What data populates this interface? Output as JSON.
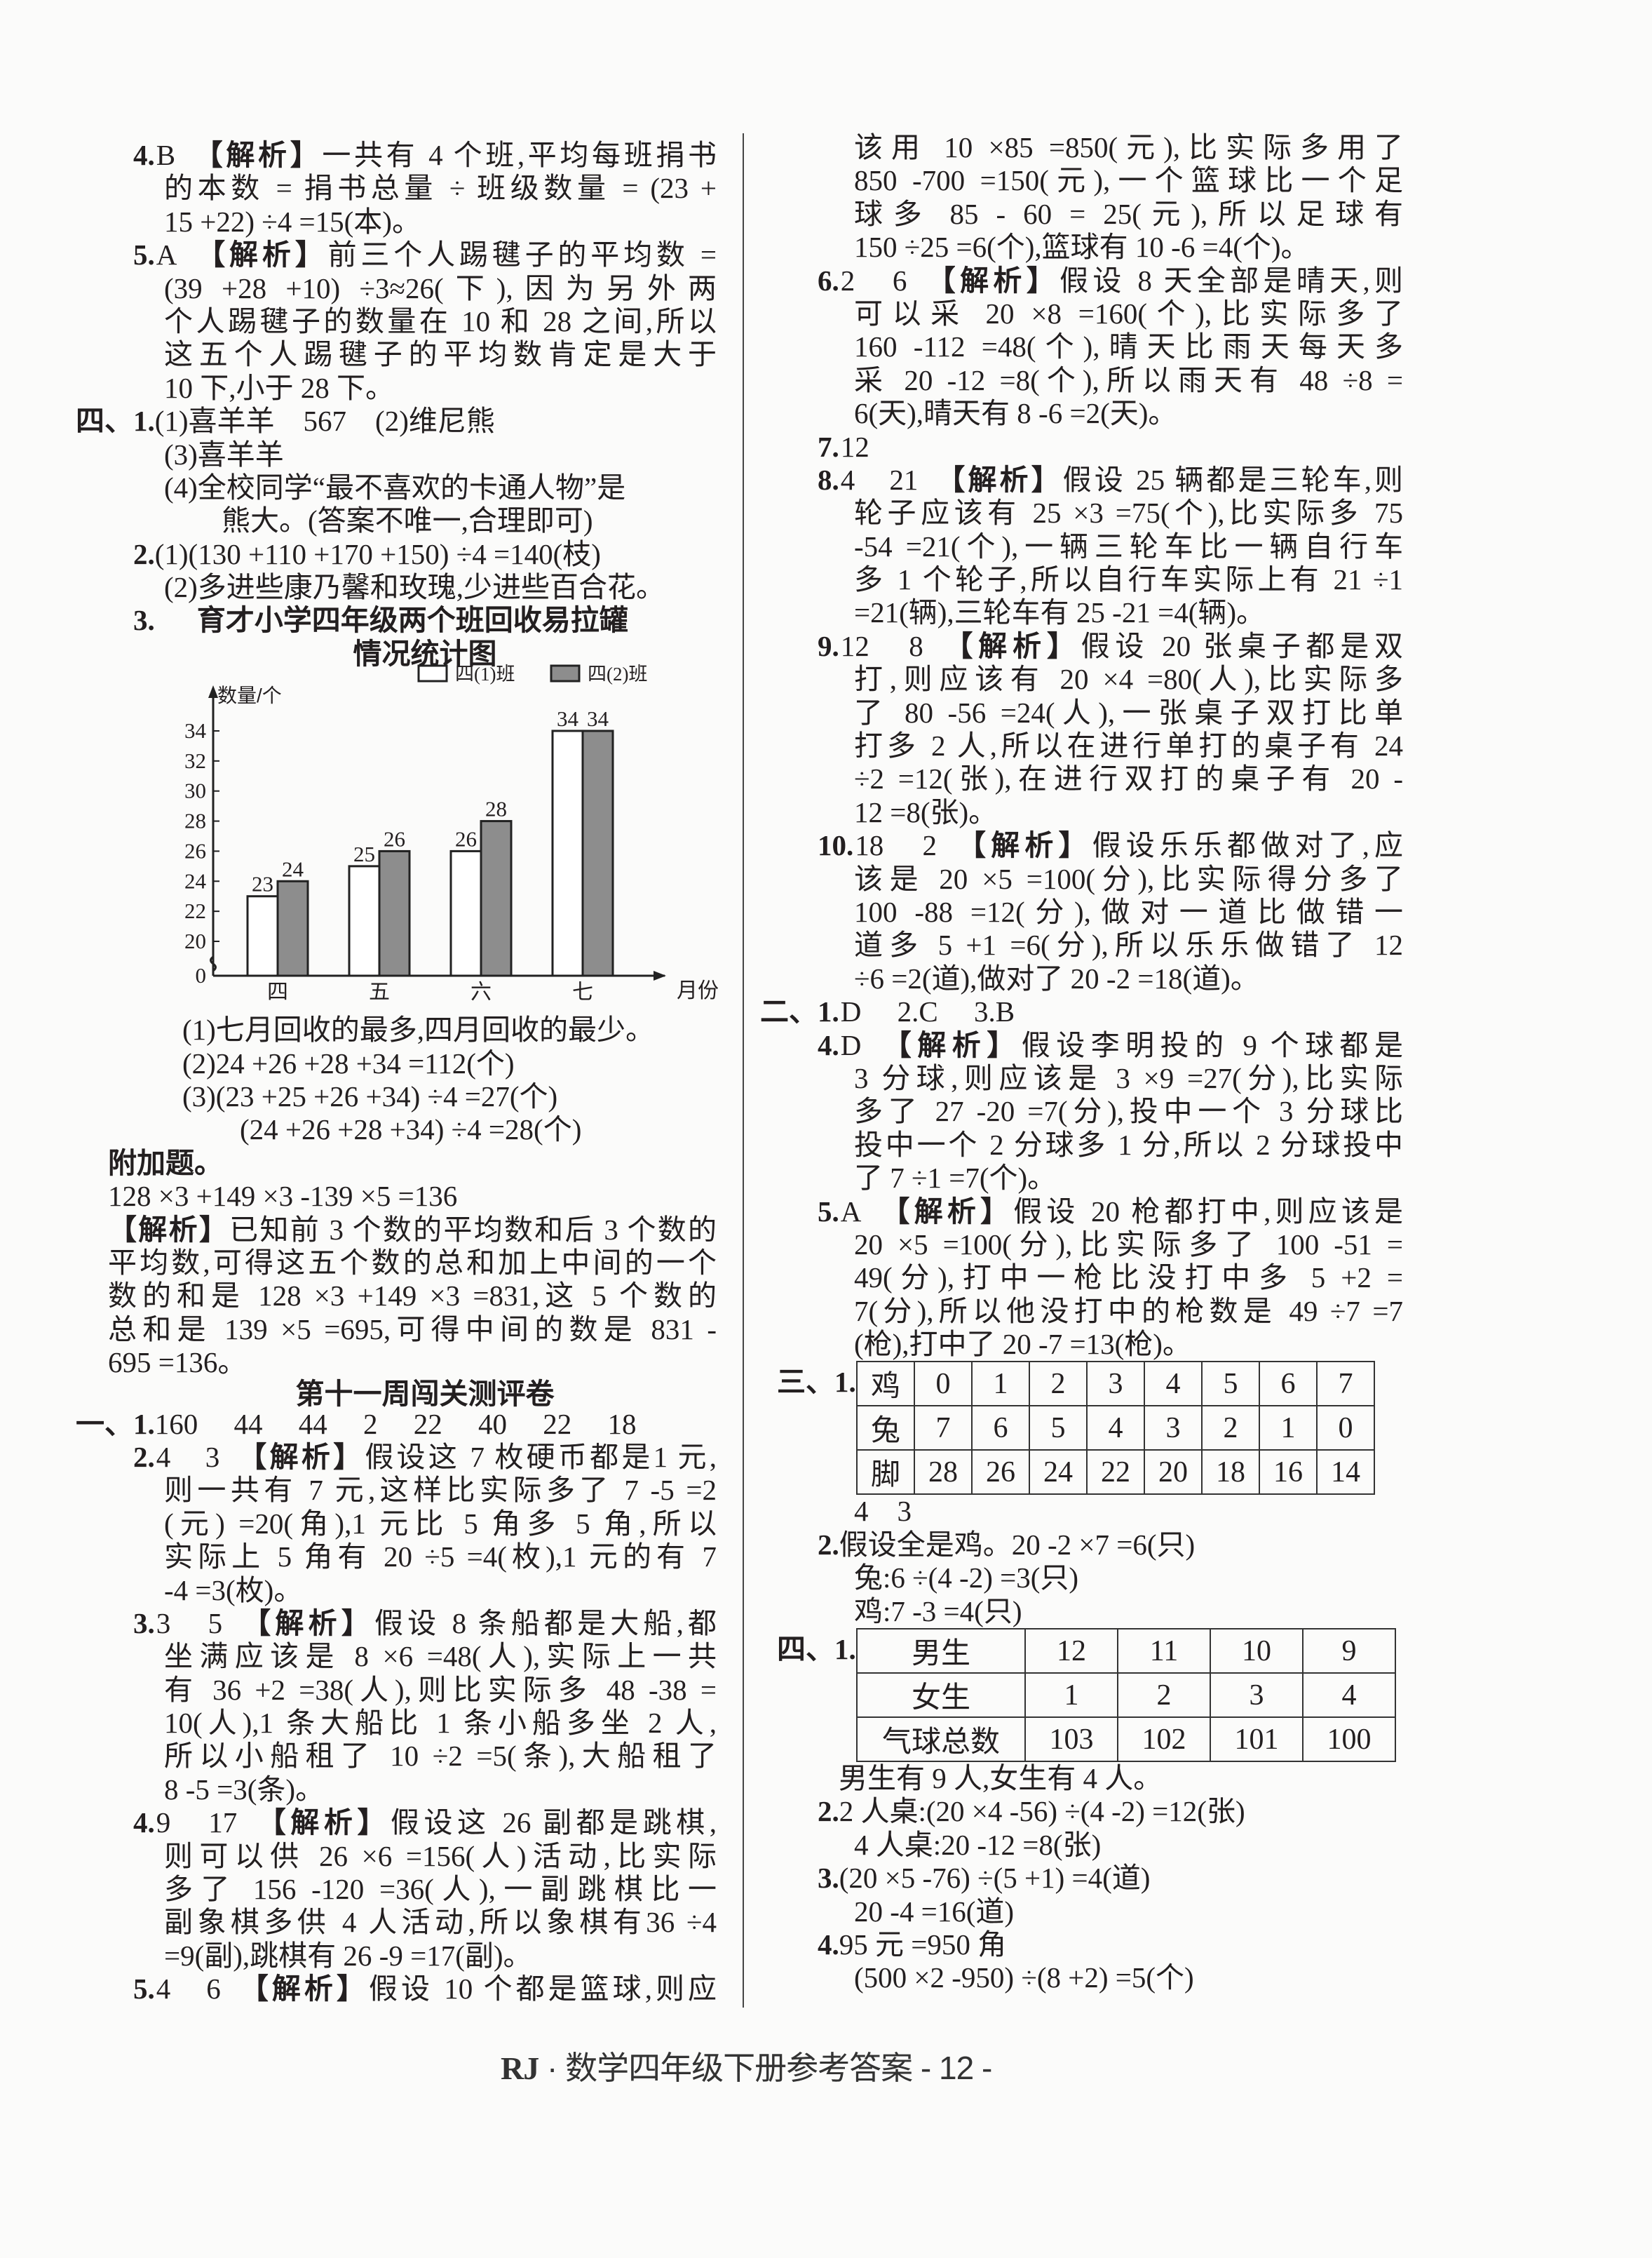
{
  "left": {
    "items_a": [
      {
        "num": "4.",
        "ans": "B",
        "tag": "【解析】",
        "first": "一共有 4 个班,平均每班捐书",
        "lines": [
          "的本数 = 捐书总量 ÷ 班级数量 = (23 +",
          "15 +22) ÷4 =15(本)。"
        ]
      },
      {
        "num": "5.",
        "ans": "A",
        "tag": "【解析】",
        "first": "前三个人踢毽子的平均数 =",
        "lines": [
          "(39 +28 +10) ÷3≈26(下),因为另外两",
          "个人踢毽子的数量在 10 和 28 之间,所以",
          "这五个人踢毽子的平均数肯定是大于",
          "10 下,小于 28 下。"
        ]
      },
      {
        "sec": "四、",
        "num": "1.",
        "first": "(1)喜羊羊　567　(2)维尼熊",
        "lines": [
          "(3)喜羊羊",
          "(4)全校同学“最不喜欢的卡通人物”是",
          "　　熊大。(答案不唯一,合理即可)"
        ]
      },
      {
        "num": "2.",
        "first": "(1)(130 +110 +170 +150) ÷4 =140(枝)",
        "lines": [
          "(2)多进些康乃馨和玫瑰,少进些百合花。"
        ]
      }
    ],
    "q3": {
      "num": "3.",
      "answers": [
        "(1)七月回收的最多,四月回收的最少。",
        "(2)24 +26 +28 +34 =112(个)",
        "(3)(23 +25 +26 +34) ÷4 =27(个)",
        "　　(24 +26 +28 +34) ÷4 =28(个)"
      ]
    },
    "extra": {
      "heading": "附加题。",
      "formula": "128 ×3 +149 ×3 -139 ×5 =136",
      "tag": "【解析】",
      "first": "已知前 3 个数的平均数和后 3 个数的",
      "lines": [
        "平均数,可得这五个数的总和加上中间的一个",
        "数的和是 128 ×3 +149 ×3 =831,这 5 个数的",
        "总和是 139 ×5 =695,可得中间的数是 831 -",
        "695 =136。"
      ]
    },
    "week11": {
      "heading": "第十一周闯关测评卷",
      "items": [
        {
          "sec": "一、",
          "num": "1.",
          "first": "160　 44　 44　 2　 22　 40　 22　 18",
          "lines": []
        },
        {
          "num": "2.",
          "ans": "4　3",
          "tag": "【解析】",
          "first": "假设这 7 枚硬币都是1 元,",
          "lines": [
            "则一共有 7 元,这样比实际多了 7 -5 =2",
            "(元) =20(角),1 元比 5 角多 5 角,所以",
            "实际上 5 角有 20 ÷5 =4(枚),1 元的有 7",
            "-4 =3(枚)。"
          ]
        },
        {
          "num": "3.",
          "ans": "3　5",
          "tag": "【解析】",
          "first": "假设 8 条船都是大船,都",
          "lines": [
            "坐满应该是 8 ×6 =48(人),实际上一共",
            "有 36 +2 =38(人),则比实际多 48 -38 =",
            "10(人),1 条大船比 1 条小船多坐 2 人,",
            "所以小船租了 10 ÷2 =5(条),大船租了",
            "8 -5 =3(条)。"
          ]
        },
        {
          "num": "4.",
          "ans": "9　17",
          "tag": "【解析】",
          "first": "假设这 26 副都是跳棋,",
          "lines": [
            "则可以供 26 ×6 =156(人)活动,比实际",
            "多了 156 -120 =36(人),一副跳棋比一",
            "副象棋多供 4 人活动,所以象棋有36 ÷4",
            "=9(副),跳棋有 26 -9 =17(副)。"
          ]
        },
        {
          "num": "5.",
          "ans": "4　6",
          "tag": "【解析】",
          "first": "假设 10 个都是篮球,则应",
          "lines": []
        }
      ]
    }
  },
  "right": {
    "cont_lines": [
      "该用 10 ×85 =850(元),比实际多用了",
      "850 -700 =150(元),一个篮球比一个足",
      "球多 85 - 60 = 25(元),所以足球有",
      "150 ÷25 =6(个),篮球有 10 -6 =4(个)。"
    ],
    "items_a": [
      {
        "num": "6.",
        "ans": "2　6",
        "tag": "【解析】",
        "first": "假设 8 天全部是晴天,则",
        "lines": [
          "可以采 20 ×8 =160(个),比实际多了",
          "160 -112 =48(个),晴天比雨天每天多",
          "采 20 -12 =8(个),所以雨天有 48 ÷8 =",
          "6(天),晴天有 8 -6 =2(天)。"
        ]
      },
      {
        "num": "7.",
        "ans": "12",
        "first": "",
        "lines": []
      },
      {
        "num": "8.",
        "ans": "4　21",
        "tag": "【解析】",
        "first": "假设 25 辆都是三轮车,则",
        "lines": [
          "轮子应该有 25 ×3 =75(个),比实际多 75",
          "-54 =21(个),一辆三轮车比一辆自行车",
          "多 1 个轮子,所以自行车实际上有 21 ÷1",
          "=21(辆),三轮车有 25 -21 =4(辆)。"
        ]
      },
      {
        "num": "9.",
        "ans": "12　8",
        "tag": "【解析】",
        "first": "假设 20 张桌子都是双",
        "lines": [
          "打,则应该有 20 ×4 =80(人),比实际多",
          "了 80 -56 =24(人),一张桌子双打比单",
          "打多 2 人,所以在进行单打的桌子有 24",
          "÷2 =12(张),在进行双打的桌子有 20 -",
          "12 =8(张)。"
        ]
      },
      {
        "num": "10.",
        "ans": "18　2",
        "tag": "【解析】",
        "first": "假设乐乐都做对了,应",
        "lines": [
          "该是 20 ×5 =100(分),比实际得分多了",
          "100 -88 =12(分),做对一道比做错一",
          "道多 5 +1 =6(分),所以乐乐做错了 12",
          "÷6 =2(道),做对了 20 -2 =18(道)。"
        ]
      },
      {
        "sec": "二、",
        "num": "1.",
        "ans": "D　 2.C　 3.B",
        "first": "",
        "lines": []
      },
      {
        "num": "4.",
        "ans": "D",
        "tag": "【解析】",
        "first": "假设李明投的 9 个球都是",
        "lines": [
          "3 分球,则应该是 3 ×9 =27(分),比实际",
          "多了 27 -20 =7(分),投中一个 3 分球比",
          "投中一个 2 分球多 1 分,所以 2 分球投中",
          "了 7 ÷1 =7(个)。"
        ]
      },
      {
        "num": "5.",
        "ans": "A",
        "tag": "【解析】",
        "first": "假设 20 枪都打中,则应该是",
        "lines": [
          "20 ×5 =100(分),比实际多了 100 -51 =",
          "49(分),打中一枪比没打中多 5 +2 =",
          "7(分),所以他没打中的枪数是 49 ÷7 =7",
          "(枪),打中了 20 -7 =13(枪)。"
        ]
      }
    ],
    "sec3": {
      "label": "三、1.",
      "table": [
        [
          "鸡",
          "0",
          "1",
          "2",
          "3",
          "4",
          "5",
          "6",
          "7"
        ],
        [
          "兔",
          "7",
          "6",
          "5",
          "4",
          "3",
          "2",
          "1",
          "0"
        ],
        [
          "脚",
          "28",
          "26",
          "24",
          "22",
          "20",
          "18",
          "16",
          "14"
        ]
      ],
      "after": "4　3",
      "items": [
        {
          "num": "2.",
          "first": "假设全是鸡。20 -2 ×7 =6(只)",
          "lines": [
            "兔:6 ÷(4 -2) =3(只)",
            "鸡:7 -3 =4(只)"
          ]
        }
      ]
    },
    "sec4": {
      "label": "四、1.",
      "table": [
        [
          "男生",
          "12",
          "11",
          "10",
          "9"
        ],
        [
          "女生",
          "1",
          "2",
          "3",
          "4"
        ],
        [
          "气球总数",
          "103",
          "102",
          "101",
          "100"
        ]
      ],
      "after": "男生有 9 人,女生有 4 人。",
      "items": [
        {
          "num": "2.",
          "first": "2 人桌:(20 ×4 -56) ÷(4 -2) =12(张)",
          "lines": [
            "4 人桌:20 -12 =8(张)"
          ]
        },
        {
          "num": "3.",
          "first": "(20 ×5 -76) ÷(5 +1) =4(道)",
          "lines": [
            "20 -4 =16(道)"
          ]
        },
        {
          "num": "4.",
          "first": "95 元 =950 角",
          "lines": [
            "(500 ×2 -950) ÷(8 +2) =5(个)"
          ]
        }
      ]
    }
  },
  "footer": {
    "brand": "RJ",
    "dot": " · ",
    "text": "数学四年级下册参考答案",
    "page": " - 12 -"
  },
  "chart_data": {
    "type": "bar",
    "title": [
      "育才小学四年级两个班回收易拉罐",
      "情况统计图"
    ],
    "categories": [
      "四",
      "五",
      "六",
      "七"
    ],
    "xlabel": "月份",
    "ylabel": "数量/个",
    "yticks": [
      0,
      20,
      22,
      24,
      26,
      28,
      30,
      32,
      34
    ],
    "ylim": [
      0,
      34
    ],
    "axis_break": [
      0,
      20
    ],
    "grid": false,
    "legend": "top-right",
    "data_labels": true,
    "series": [
      {
        "name": "四(1)班",
        "values": [
          23,
          25,
          26,
          34
        ],
        "color": "#ffffff"
      },
      {
        "name": "四(2)班",
        "values": [
          24,
          26,
          28,
          34
        ],
        "color": "#8d8d8d"
      }
    ]
  }
}
